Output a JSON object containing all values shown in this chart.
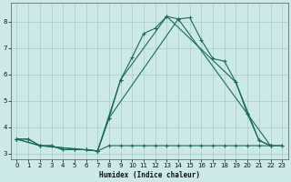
{
  "title": "",
  "xlabel": "Humidex (Indice chaleur)",
  "bg_color": "#cce8e8",
  "grid_color": "#aacccc",
  "line_color": "#1a6b5a",
  "xlim": [
    -0.5,
    23.5
  ],
  "ylim": [
    2.8,
    8.7
  ],
  "yticks": [
    3,
    4,
    5,
    6,
    7,
    8
  ],
  "xticks": [
    0,
    1,
    2,
    3,
    4,
    5,
    6,
    7,
    8,
    9,
    10,
    11,
    12,
    13,
    14,
    15,
    16,
    17,
    18,
    19,
    20,
    21,
    22,
    23
  ],
  "lines": [
    {
      "x": [
        0,
        1,
        2,
        3,
        4,
        5,
        6,
        7,
        8,
        9,
        10,
        11,
        12,
        13,
        14,
        15,
        16,
        17,
        18,
        19,
        20,
        21,
        22,
        23
      ],
      "y": [
        3.55,
        3.55,
        3.3,
        3.3,
        3.15,
        3.15,
        3.15,
        3.1,
        3.3,
        3.3,
        3.3,
        3.3,
        3.3,
        3.3,
        3.3,
        3.3,
        3.3,
        3.3,
        3.3,
        3.3,
        3.3,
        3.3,
        3.3,
        3.3
      ]
    },
    {
      "x": [
        0,
        1,
        2,
        3,
        4,
        5,
        6,
        7,
        8,
        9,
        10,
        11,
        12,
        13,
        14,
        15,
        16,
        17,
        18,
        19,
        20,
        21,
        22,
        23
      ],
      "y": [
        3.55,
        3.55,
        3.3,
        3.3,
        3.15,
        3.15,
        3.15,
        3.1,
        4.35,
        5.8,
        6.65,
        7.55,
        7.75,
        8.2,
        8.1,
        8.15,
        7.3,
        6.6,
        6.5,
        5.7,
        4.5,
        3.5,
        3.3,
        3.3
      ]
    },
    {
      "x": [
        0,
        2,
        7,
        9,
        13,
        19,
        21,
        22
      ],
      "y": [
        3.55,
        3.3,
        3.1,
        5.8,
        8.2,
        5.7,
        3.5,
        3.3
      ]
    },
    {
      "x": [
        0,
        2,
        7,
        8,
        14,
        20,
        22
      ],
      "y": [
        3.55,
        3.3,
        3.1,
        4.35,
        8.1,
        4.5,
        3.3
      ]
    }
  ]
}
